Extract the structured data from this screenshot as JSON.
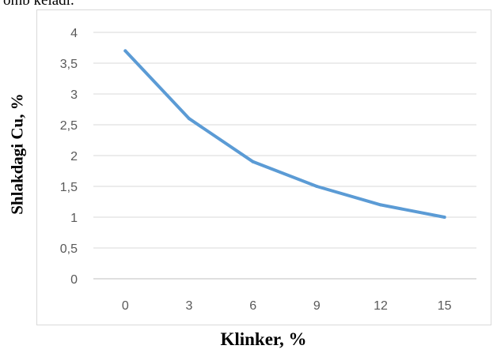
{
  "page": {
    "text_fragment": "omb keladi."
  },
  "chart_data": {
    "type": "line",
    "title": "",
    "xlabel": "Klinker, %",
    "ylabel": "Shlakdagi Cu, %",
    "categories": [
      "0",
      "3",
      "6",
      "9",
      "12",
      "15"
    ],
    "series": [
      {
        "values": [
          3.7,
          2.6,
          1.9,
          1.5,
          1.2,
          1.0
        ],
        "color": "#5b9bd5"
      }
    ],
    "ylim": [
      0,
      4
    ],
    "yticks": [
      "0",
      "0,5",
      "1",
      "1,5",
      "2",
      "2,5",
      "3",
      "3,5",
      "4"
    ],
    "grid": true,
    "legend": "none"
  }
}
